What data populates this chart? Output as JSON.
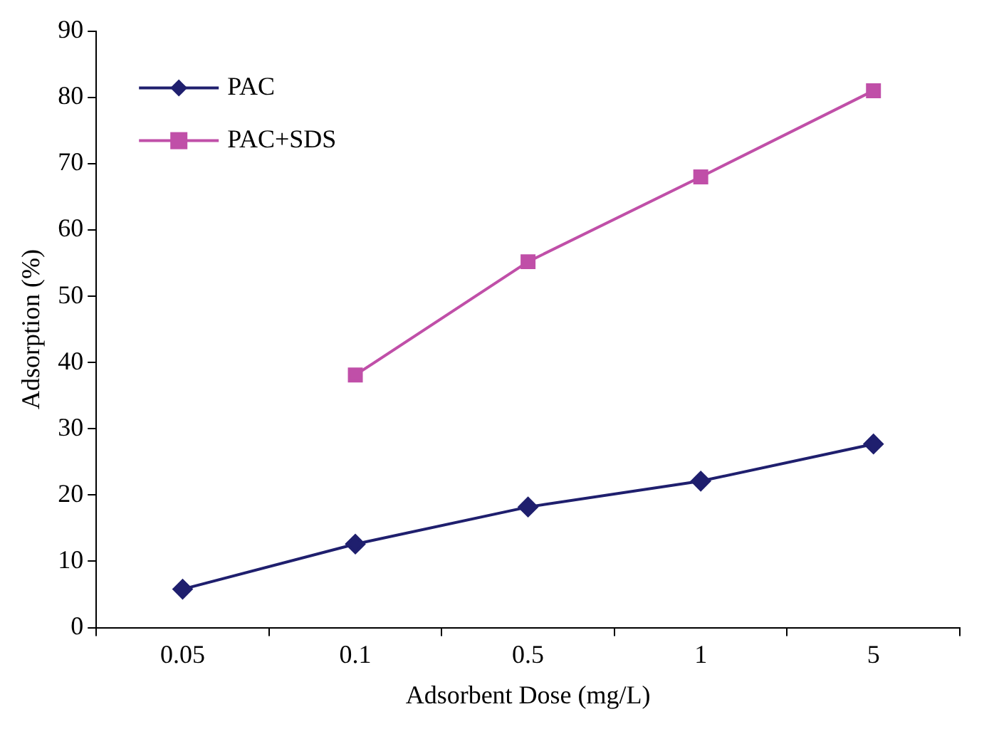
{
  "chart_data": {
    "type": "line",
    "xlabel": "Adsorbent Dose (mg/L)",
    "ylabel": "Adsorption (%)",
    "categories": [
      "0.05",
      "0.1",
      "0.5",
      "1",
      "5"
    ],
    "ylim": [
      0,
      90
    ],
    "yticks": [
      0,
      10,
      20,
      30,
      40,
      50,
      60,
      70,
      80,
      90
    ],
    "grid": false,
    "legend": "top left",
    "series": [
      {
        "name": "PAC",
        "color": "#1f1f6e",
        "marker": "diamond",
        "values": [
          5.8,
          12.6,
          18.2,
          22.1,
          27.7
        ]
      },
      {
        "name": "PAC+SDS",
        "color": "#c04fa8",
        "marker": "square",
        "values": [
          null,
          38.1,
          55.2,
          68.0,
          81.0
        ]
      }
    ]
  }
}
